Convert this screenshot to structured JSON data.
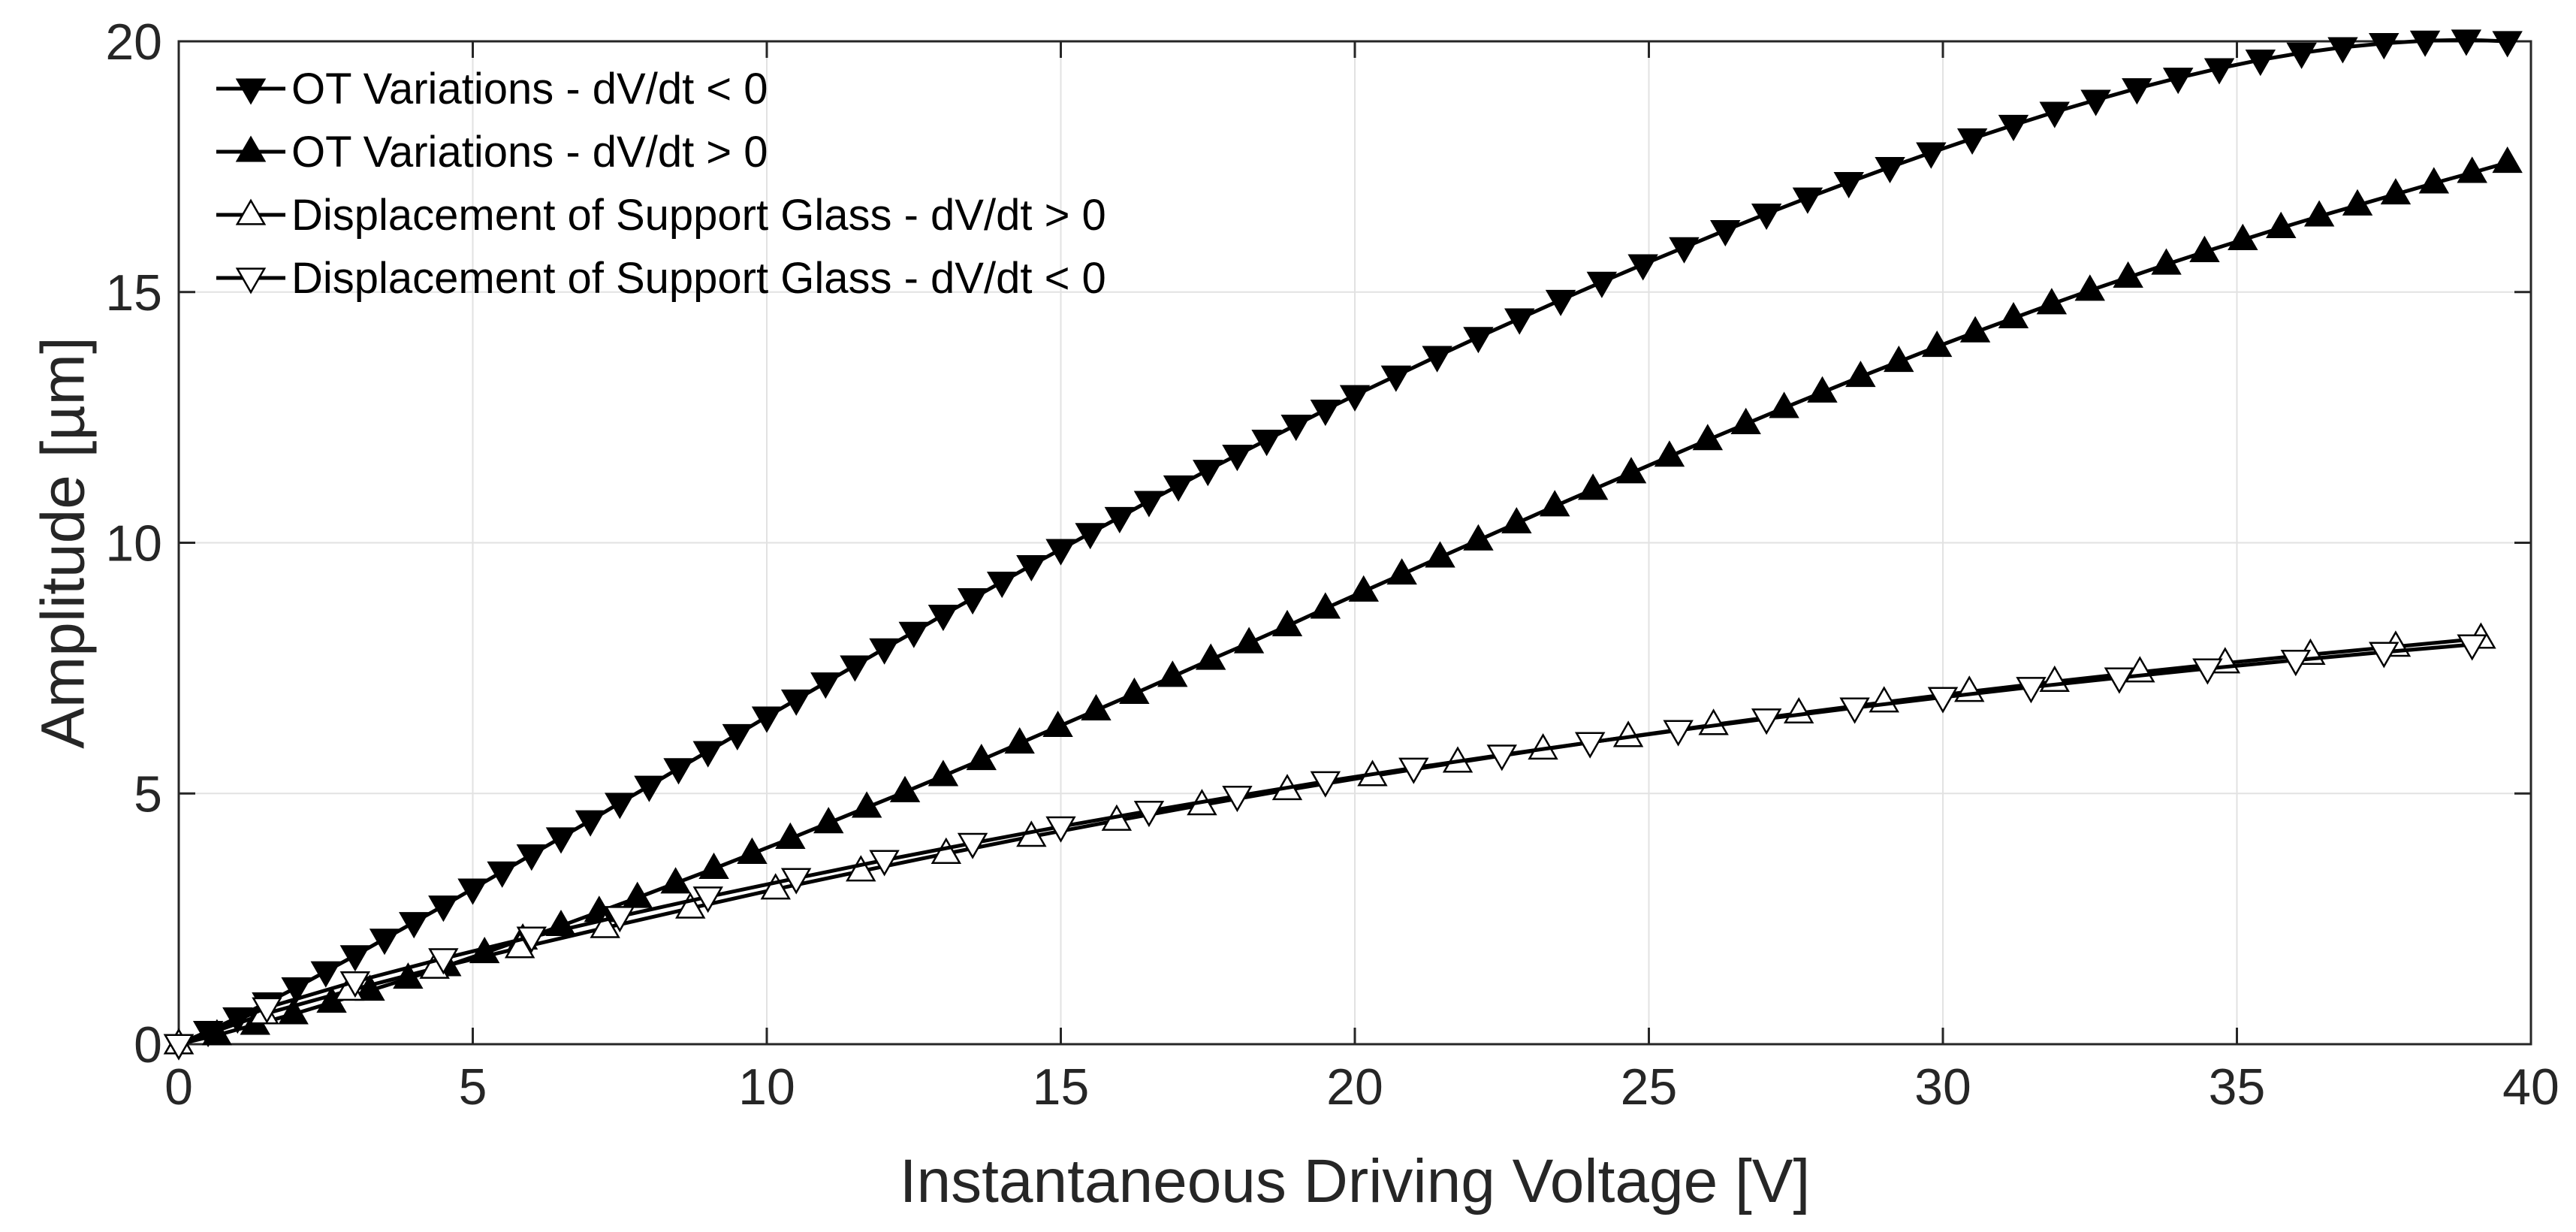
{
  "chart_data": {
    "type": "line",
    "title": "",
    "xlabel": "Instantaneous Driving Voltage [V]",
    "ylabel": "Amplitude [µm]",
    "xlim": [
      0,
      40
    ],
    "ylim": [
      0,
      20
    ],
    "xticks": [
      0,
      5,
      10,
      15,
      20,
      25,
      30,
      35,
      40
    ],
    "yticks": [
      0,
      5,
      10,
      15,
      20
    ],
    "grid": true,
    "legend_position": "top-left",
    "series": [
      {
        "name": "OT Variations - dV/dt < 0",
        "marker": "triangle-down",
        "fill": "#000000",
        "x": [
          0,
          0.5,
          1,
          1.5,
          2,
          2.5,
          3,
          3.5,
          4,
          4.5,
          5,
          5.5,
          6,
          6.5,
          7,
          7.5,
          8,
          8.5,
          9,
          9.5,
          10,
          10.5,
          11,
          11.5,
          12,
          12.5,
          13,
          13.5,
          14,
          14.5,
          15,
          15.5,
          16,
          16.5,
          17,
          17.5,
          18,
          18.5,
          19,
          19.5,
          20,
          20.7,
          21.4,
          22.1,
          22.8,
          23.5,
          24.2,
          24.9,
          25.6,
          26.3,
          27,
          27.7,
          28.4,
          29.1,
          29.8,
          30.5,
          31.2,
          31.9,
          32.6,
          33.3,
          34,
          34.7,
          35.4,
          36.1,
          36.8,
          37.5,
          38.2,
          38.9,
          39.6
        ],
        "values": [
          0,
          0.26,
          0.53,
          0.83,
          1.13,
          1.45,
          1.77,
          2.1,
          2.43,
          2.76,
          3.1,
          3.44,
          3.78,
          4.12,
          4.46,
          4.81,
          5.15,
          5.5,
          5.84,
          6.18,
          6.53,
          6.87,
          7.21,
          7.55,
          7.89,
          8.22,
          8.56,
          8.89,
          9.22,
          9.55,
          9.87,
          10.19,
          10.51,
          10.83,
          11.14,
          11.45,
          11.75,
          12.05,
          12.35,
          12.65,
          12.94,
          13.33,
          13.72,
          14.1,
          14.47,
          14.84,
          15.2,
          15.55,
          15.89,
          16.23,
          16.56,
          16.88,
          17.19,
          17.49,
          17.78,
          18.06,
          18.33,
          18.59,
          18.83,
          19.06,
          19.27,
          19.46,
          19.63,
          19.77,
          19.88,
          19.96,
          20.01,
          20.03,
          20.0
        ]
      },
      {
        "name": "OT Variations - dV/dt > 0",
        "marker": "triangle-up",
        "fill": "#000000",
        "x": [
          0,
          0.65,
          1.3,
          1.95,
          2.6,
          3.25,
          3.9,
          4.55,
          5.2,
          5.85,
          6.5,
          7.15,
          7.8,
          8.45,
          9.1,
          9.75,
          10.4,
          11.05,
          11.7,
          12.35,
          13,
          13.65,
          14.3,
          14.95,
          15.6,
          16.25,
          16.9,
          17.55,
          18.2,
          18.85,
          19.5,
          20.15,
          20.8,
          21.45,
          22.1,
          22.75,
          23.4,
          24.05,
          24.7,
          25.35,
          26,
          26.65,
          27.3,
          27.95,
          28.6,
          29.25,
          29.9,
          30.55,
          31.2,
          31.85,
          32.5,
          33.15,
          33.8,
          34.45,
          35.1,
          35.75,
          36.4,
          37.05,
          37.7,
          38.35,
          39,
          39.6
        ],
        "values": [
          0,
          0.18,
          0.39,
          0.6,
          0.83,
          1.07,
          1.31,
          1.56,
          1.82,
          2.09,
          2.36,
          2.64,
          2.92,
          3.21,
          3.5,
          3.8,
          4.1,
          4.41,
          4.72,
          5.03,
          5.35,
          5.67,
          6.0,
          6.33,
          6.66,
          6.99,
          7.33,
          7.67,
          8.0,
          8.34,
          8.69,
          9.03,
          9.37,
          9.71,
          10.05,
          10.39,
          10.73,
          11.06,
          11.39,
          11.72,
          12.05,
          12.37,
          12.69,
          13.0,
          13.31,
          13.61,
          13.91,
          14.2,
          14.48,
          14.76,
          15.03,
          15.29,
          15.55,
          15.8,
          16.04,
          16.28,
          16.51,
          16.73,
          16.95,
          17.17,
          17.38,
          17.58
        ]
      },
      {
        "name": "Displacement of Support Glass - dV/dt > 0",
        "marker": "triangle-up",
        "fill": "#ffffff",
        "x": [
          0,
          1.45,
          2.9,
          4.35,
          5.8,
          7.25,
          8.7,
          10.15,
          11.6,
          13.05,
          14.5,
          15.95,
          17.4,
          18.85,
          20.3,
          21.75,
          23.2,
          24.65,
          26.1,
          27.55,
          29,
          30.45,
          31.9,
          33.35,
          34.8,
          36.25,
          37.7,
          39.15
        ],
        "values": [
          0,
          0.6,
          1.07,
          1.51,
          1.92,
          2.32,
          2.71,
          3.09,
          3.45,
          3.8,
          4.14,
          4.46,
          4.77,
          5.07,
          5.35,
          5.62,
          5.88,
          6.13,
          6.37,
          6.6,
          6.82,
          7.03,
          7.23,
          7.42,
          7.6,
          7.77,
          7.93,
          8.09
        ]
      },
      {
        "name": "Displacement of Support Glass - dV/dt < 0",
        "marker": "triangle-down",
        "fill": "#ffffff",
        "x": [
          0,
          1.5,
          3,
          4.5,
          6,
          7.5,
          9,
          10.5,
          12,
          13.5,
          15,
          16.5,
          18,
          19.5,
          21,
          22.5,
          24,
          25.5,
          27,
          28.5,
          30,
          31.5,
          33,
          34.5,
          36,
          37.5,
          39
        ],
        "values": [
          0,
          0.73,
          1.25,
          1.71,
          2.14,
          2.55,
          2.94,
          3.31,
          3.67,
          4.01,
          4.34,
          4.65,
          4.95,
          5.24,
          5.51,
          5.77,
          6.02,
          6.26,
          6.49,
          6.71,
          6.92,
          7.12,
          7.31,
          7.49,
          7.66,
          7.82,
          7.97
        ]
      }
    ]
  }
}
